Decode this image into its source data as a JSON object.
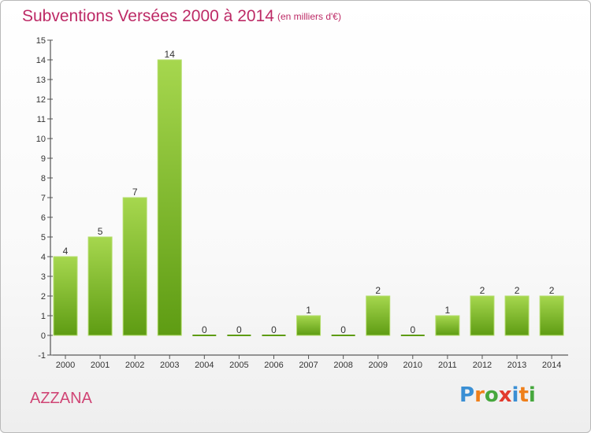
{
  "header": {
    "title": "Subventions Versées 2000 à 2014",
    "unit": "(en milliers d'€)"
  },
  "footer": {
    "commune": "AZZANA",
    "logo": {
      "letters": [
        "P",
        "r",
        "o",
        "x",
        "i",
        "t",
        "i"
      ],
      "colors": [
        "#3a8fd4",
        "#ef7f1a",
        "#46a73d",
        "#e23a2d",
        "#3a8fd4",
        "#ef7f1a",
        "#46a73d"
      ]
    }
  },
  "colors": {
    "bar_light": "#a6d74e",
    "bar_dark": "#5e9c13",
    "title": "#bd2a66",
    "axis": "#333333",
    "grid_tick": "#555555"
  },
  "chart_data": {
    "type": "bar",
    "title": "Subventions Versées 2000 à 2014",
    "subtitle": "(en milliers d'€)",
    "categories": [
      "2000",
      "2001",
      "2002",
      "2003",
      "2004",
      "2005",
      "2006",
      "2007",
      "2008",
      "2009",
      "2010",
      "2011",
      "2012",
      "2013",
      "2014"
    ],
    "values": [
      4,
      5,
      7,
      14,
      0,
      0,
      0,
      1,
      0,
      2,
      0,
      1,
      2,
      2,
      2
    ],
    "ylim": [
      -1,
      15
    ],
    "yticks": [
      -1,
      0,
      1,
      2,
      3,
      4,
      5,
      6,
      7,
      8,
      9,
      10,
      11,
      12,
      13,
      14,
      15
    ],
    "data_labels": true,
    "grid": false,
    "legend": "none"
  }
}
